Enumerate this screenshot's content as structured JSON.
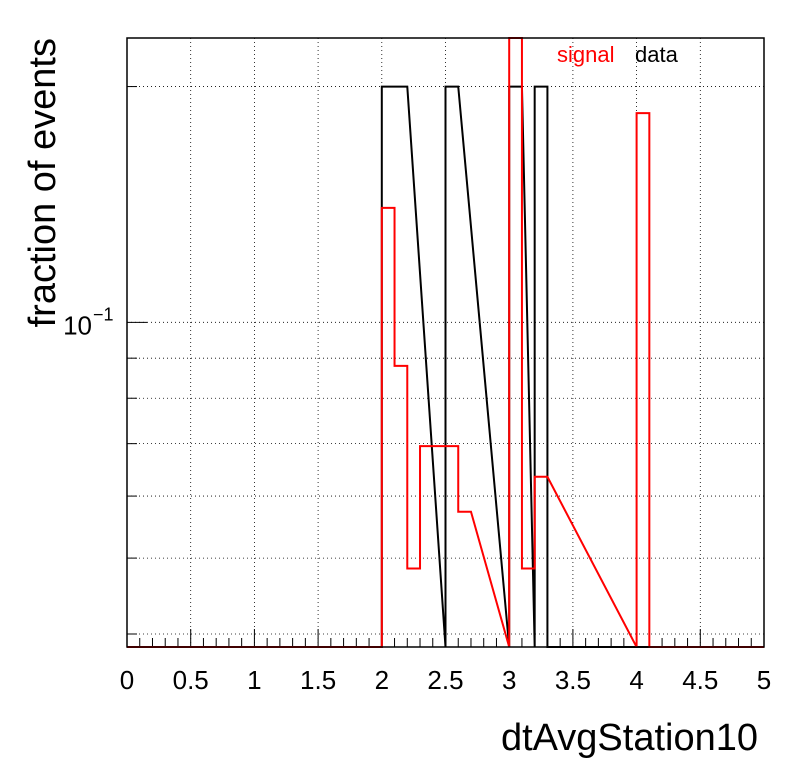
{
  "chart_data": {
    "type": "histogram",
    "xlabel": "dtAvgStation10",
    "ylabel": "fraction of events",
    "xlim": [
      0,
      5
    ],
    "ylim": [
      0.0385,
      0.2307
    ],
    "yscale": "log",
    "grid": true,
    "bin_width": 0.1,
    "x_ticks": [
      "0",
      "0.5",
      "1",
      "1.5",
      "2",
      "2.5",
      "3",
      "3.5",
      "4",
      "4.5",
      "5"
    ],
    "y_tick_label": {
      "base": "10",
      "exponent": "−1",
      "value": 0.1
    },
    "legend": {
      "placement": "top-right",
      "entries": [
        {
          "label": "signal",
          "color": "#ff0000"
        },
        {
          "label": "data",
          "color": "#000000"
        }
      ]
    },
    "series": [
      {
        "name": "data",
        "color": "#000000",
        "bins": [
          {
            "x0": 2.0,
            "x1": 2.2,
            "y": 0.2
          },
          {
            "x0": 2.5,
            "x1": 2.6,
            "y": 0.2
          },
          {
            "x0": 3.0,
            "x1": 3.1,
            "y": 0.2
          },
          {
            "x0": 3.2,
            "x1": 3.3,
            "y": 0.2
          }
        ]
      },
      {
        "name": "signal",
        "color": "#ff0000",
        "bins": [
          {
            "x0": 2.0,
            "x1": 2.1,
            "y": 0.14
          },
          {
            "x0": 2.1,
            "x1": 2.2,
            "y": 0.088
          },
          {
            "x0": 2.2,
            "x1": 2.3,
            "y": 0.0485
          },
          {
            "x0": 2.3,
            "x1": 2.6,
            "y": 0.0695
          },
          {
            "x0": 2.6,
            "x1": 2.7,
            "y": 0.0573
          },
          {
            "x0": 3.0,
            "x1": 3.1,
            "y": 0.2307
          },
          {
            "x0": 3.1,
            "x1": 3.2,
            "y": 0.0485
          },
          {
            "x0": 3.2,
            "x1": 3.3,
            "y": 0.0635
          },
          {
            "x0": 4.0,
            "x1": 4.1,
            "y": 0.185
          }
        ]
      }
    ]
  }
}
